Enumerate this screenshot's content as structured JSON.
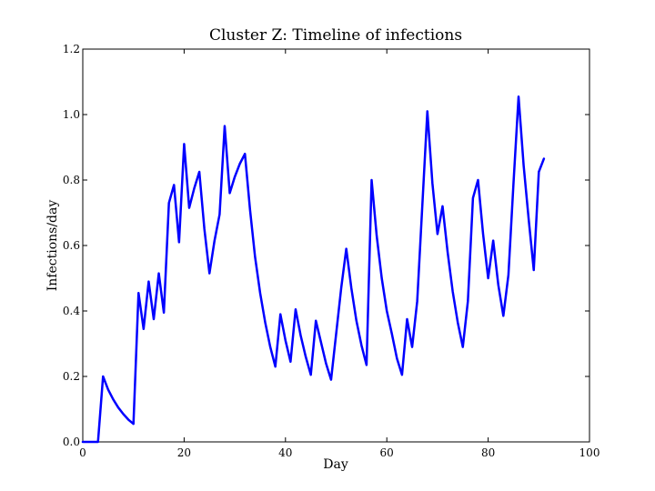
{
  "chart_data": {
    "type": "line",
    "title": "Cluster Z: Timeline of infections",
    "xlabel": "Day",
    "ylabel": "Infections/day",
    "xlim": [
      0,
      100
    ],
    "ylim": [
      0.0,
      1.2
    ],
    "xticks": [
      "0",
      "20",
      "40",
      "60",
      "80",
      "100"
    ],
    "yticks": [
      "0.0",
      "0.2",
      "0.4",
      "0.6",
      "0.8",
      "1.0",
      "1.2"
    ],
    "grid": false,
    "series": [
      {
        "color": "#0000ff",
        "x": [
          0,
          1,
          2,
          3,
          4,
          5,
          6,
          7,
          8,
          9,
          10,
          11,
          12,
          13,
          14,
          15,
          16,
          17,
          18,
          19,
          20,
          21,
          22,
          23,
          24,
          25,
          26,
          27,
          28,
          29,
          30,
          31,
          32,
          33,
          34,
          35,
          36,
          37,
          38,
          39,
          40,
          41,
          42,
          43,
          44,
          45,
          46,
          47,
          48,
          49,
          50,
          51,
          52,
          53,
          54,
          55,
          56,
          57,
          58,
          59,
          60,
          61,
          62,
          63,
          64,
          65,
          66,
          67,
          68,
          69,
          70,
          71,
          72,
          73,
          74,
          75,
          76,
          77,
          78,
          79,
          80,
          81,
          82,
          83,
          84,
          85,
          86,
          87,
          88,
          89,
          90,
          91
        ],
        "y": [
          0.0,
          0.0,
          0.0,
          0.0,
          0.2,
          0.16,
          0.13,
          0.105,
          0.085,
          0.068,
          0.055,
          0.455,
          0.345,
          0.49,
          0.375,
          0.515,
          0.395,
          0.73,
          0.785,
          0.61,
          0.91,
          0.715,
          0.775,
          0.825,
          0.65,
          0.515,
          0.615,
          0.695,
          0.965,
          0.76,
          0.81,
          0.85,
          0.88,
          0.71,
          0.565,
          0.455,
          0.365,
          0.29,
          0.23,
          0.39,
          0.31,
          0.245,
          0.405,
          0.325,
          0.26,
          0.205,
          0.37,
          0.305,
          0.24,
          0.19,
          0.33,
          0.47,
          0.59,
          0.47,
          0.37,
          0.295,
          0.235,
          0.8,
          0.63,
          0.5,
          0.4,
          0.33,
          0.255,
          0.205,
          0.375,
          0.29,
          0.43,
          0.72,
          1.01,
          0.79,
          0.635,
          0.72,
          0.58,
          0.46,
          0.365,
          0.29,
          0.43,
          0.745,
          0.8,
          0.635,
          0.5,
          0.615,
          0.48,
          0.385,
          0.51,
          0.79,
          1.055,
          0.845,
          0.68,
          0.525,
          0.825,
          0.865
        ]
      }
    ]
  }
}
